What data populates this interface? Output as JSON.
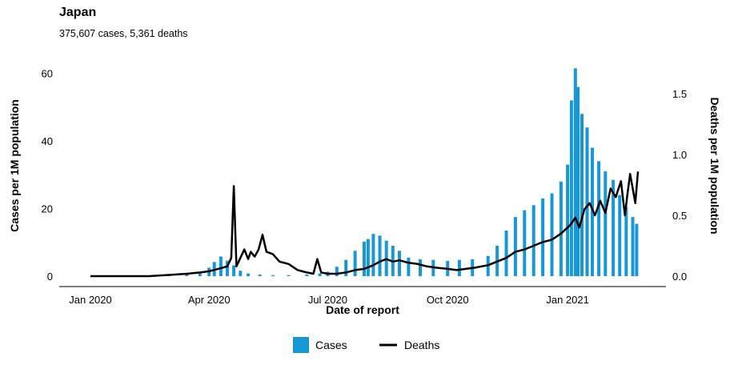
{
  "title": "Japan",
  "subtitle": "375,607 cases, 5,361 deaths",
  "colors": {
    "cases": "#1797d6",
    "deaths": "#000000"
  },
  "chart_data": {
    "type": "bar+line",
    "x_label": "Date of report",
    "y_left_label": "Cases per 1M population",
    "y_right_label": "Deaths per 1M population",
    "y_left_ticks": [
      "0",
      "20",
      "40",
      "60"
    ],
    "y_left_range": [
      0,
      63
    ],
    "y_right_ticks": [
      "0.0",
      "0.5",
      "1.0",
      "1.5"
    ],
    "y_right_range": [
      0,
      1.75
    ],
    "x_ticks": [
      "Jan 2020",
      "Apr 2020",
      "Jul 2020",
      "Oct 2020",
      "Jan 2021"
    ],
    "x_range": [
      "2020-01-01",
      "2021-02-24"
    ],
    "grid": false,
    "legend_position": "bottom",
    "series": [
      {
        "name": "Cases",
        "type": "bar",
        "axis": "left",
        "x": [
          "2020-03-01",
          "2020-03-15",
          "2020-03-25",
          "2020-04-01",
          "2020-04-05",
          "2020-04-10",
          "2020-04-15",
          "2020-04-20",
          "2020-04-25",
          "2020-05-01",
          "2020-05-10",
          "2020-05-20",
          "2020-06-01",
          "2020-06-15",
          "2020-06-25",
          "2020-07-01",
          "2020-07-08",
          "2020-07-15",
          "2020-07-22",
          "2020-07-29",
          "2020-08-01",
          "2020-08-05",
          "2020-08-10",
          "2020-08-15",
          "2020-08-20",
          "2020-08-25",
          "2020-09-01",
          "2020-09-10",
          "2020-09-20",
          "2020-10-01",
          "2020-10-10",
          "2020-10-20",
          "2020-11-01",
          "2020-11-08",
          "2020-11-15",
          "2020-11-22",
          "2020-11-29",
          "2020-12-06",
          "2020-12-13",
          "2020-12-20",
          "2020-12-27",
          "2021-01-01",
          "2021-01-04",
          "2021-01-07",
          "2021-01-09",
          "2021-01-12",
          "2021-01-16",
          "2021-01-20",
          "2021-01-25",
          "2021-01-30",
          "2021-02-05",
          "2021-02-10",
          "2021-02-15",
          "2021-02-20",
          "2021-02-23"
        ],
        "values": [
          0.3,
          0.6,
          1.2,
          2.5,
          4.2,
          5.8,
          4.6,
          3.2,
          1.6,
          0.8,
          0.5,
          0.3,
          0.3,
          0.5,
          0.8,
          1.3,
          2.8,
          4.8,
          7.5,
          10.2,
          11.0,
          12.5,
          12.0,
          10.5,
          9.0,
          7.5,
          5.5,
          5.0,
          4.8,
          4.5,
          4.8,
          5.0,
          6.0,
          9.0,
          13.5,
          17.5,
          19.5,
          21.0,
          23.0,
          24.5,
          28.0,
          33.0,
          52.0,
          61.5,
          56.0,
          48.0,
          44.0,
          38.0,
          34.0,
          31.0,
          28.5,
          24.0,
          20.5,
          17.5,
          15.5
        ]
      },
      {
        "name": "Deaths",
        "type": "line",
        "axis": "right",
        "x": [
          "2020-01-01",
          "2020-02-15",
          "2020-03-01",
          "2020-03-15",
          "2020-03-25",
          "2020-04-01",
          "2020-04-08",
          "2020-04-15",
          "2020-04-18",
          "2020-04-20",
          "2020-04-22",
          "2020-04-25",
          "2020-04-28",
          "2020-05-01",
          "2020-05-03",
          "2020-05-06",
          "2020-05-09",
          "2020-05-12",
          "2020-05-15",
          "2020-05-20",
          "2020-05-25",
          "2020-06-01",
          "2020-06-08",
          "2020-06-15",
          "2020-06-20",
          "2020-06-23",
          "2020-06-26",
          "2020-07-01",
          "2020-07-08",
          "2020-07-15",
          "2020-07-22",
          "2020-07-29",
          "2020-08-05",
          "2020-08-10",
          "2020-08-15",
          "2020-08-20",
          "2020-08-25",
          "2020-09-01",
          "2020-09-08",
          "2020-09-15",
          "2020-09-22",
          "2020-10-01",
          "2020-10-08",
          "2020-10-15",
          "2020-10-22",
          "2020-11-01",
          "2020-11-08",
          "2020-11-15",
          "2020-11-22",
          "2020-11-29",
          "2020-12-06",
          "2020-12-13",
          "2020-12-20",
          "2020-12-27",
          "2021-01-03",
          "2021-01-07",
          "2021-01-10",
          "2021-01-14",
          "2021-01-18",
          "2021-01-22",
          "2021-01-26",
          "2021-01-30",
          "2021-02-03",
          "2021-02-07",
          "2021-02-11",
          "2021-02-14",
          "2021-02-16",
          "2021-02-18",
          "2021-02-20",
          "2021-02-22",
          "2021-02-24"
        ],
        "values": [
          0.0,
          0.0,
          0.01,
          0.02,
          0.03,
          0.04,
          0.06,
          0.08,
          0.15,
          0.74,
          0.08,
          0.15,
          0.22,
          0.14,
          0.2,
          0.16,
          0.22,
          0.34,
          0.2,
          0.18,
          0.12,
          0.1,
          0.05,
          0.03,
          0.02,
          0.14,
          0.03,
          0.02,
          0.02,
          0.03,
          0.05,
          0.06,
          0.09,
          0.12,
          0.14,
          0.12,
          0.13,
          0.11,
          0.1,
          0.08,
          0.07,
          0.06,
          0.05,
          0.06,
          0.07,
          0.09,
          0.12,
          0.15,
          0.2,
          0.22,
          0.25,
          0.28,
          0.3,
          0.35,
          0.42,
          0.48,
          0.4,
          0.55,
          0.6,
          0.5,
          0.62,
          0.52,
          0.72,
          0.65,
          0.78,
          0.5,
          0.68,
          0.84,
          0.72,
          0.6,
          0.86
        ]
      }
    ]
  }
}
